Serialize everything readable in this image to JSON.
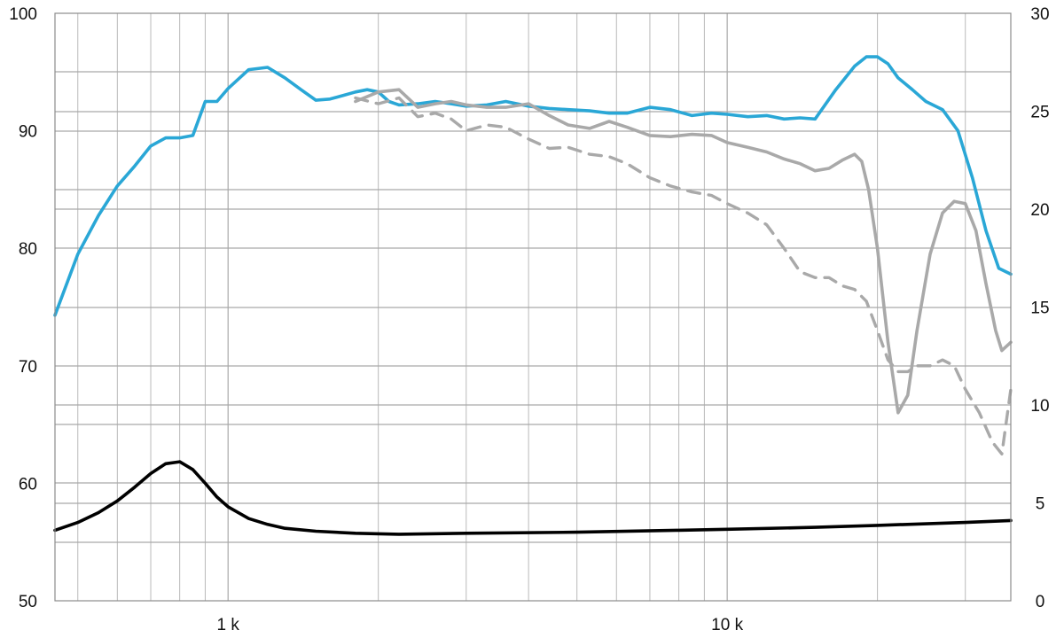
{
  "chart_data": {
    "type": "line",
    "title": "",
    "xlabel": "",
    "ylabel": "",
    "y2label": "",
    "x_scale": "log",
    "xlim": [
      450,
      37000
    ],
    "ylim": [
      50,
      100
    ],
    "y2lim": [
      0,
      30
    ],
    "grid": true,
    "legend": "none",
    "x_tick_labels": [
      {
        "value": 1000,
        "label": "1 k"
      },
      {
        "value": 10000,
        "label": "10 k"
      }
    ],
    "y_ticks": [
      50,
      60,
      70,
      80,
      90,
      100
    ],
    "y_tick_labels": [
      "50",
      "60",
      "70",
      "80",
      "90",
      "100"
    ],
    "y2_ticks": [
      0,
      5,
      10,
      15,
      20,
      25,
      30
    ],
    "y2_tick_labels": [
      "0",
      "5",
      "10",
      "15",
      "20",
      "25",
      "30"
    ],
    "series": [
      {
        "axis": "left",
        "color": "#2aa7d6",
        "style": "solid",
        "x": [
          450,
          500,
          550,
          600,
          650,
          700,
          750,
          800,
          850,
          900,
          950,
          1000,
          1100,
          1200,
          1300,
          1400,
          1500,
          1600,
          1700,
          1800,
          1900,
          2000,
          2100,
          2200,
          2400,
          2600,
          2800,
          3000,
          3300,
          3600,
          4000,
          4400,
          4800,
          5300,
          5800,
          6300,
          7000,
          7700,
          8500,
          9300,
          10000,
          11000,
          12000,
          13000,
          14000,
          15000,
          16500,
          18000,
          19000,
          20000,
          21000,
          22000,
          23500,
          25000,
          27000,
          29000,
          31000,
          33000,
          35000,
          37000
        ],
        "values": [
          74.3,
          79.5,
          82.8,
          85.3,
          87.0,
          88.7,
          89.4,
          89.4,
          89.6,
          92.5,
          92.5,
          93.6,
          95.2,
          95.4,
          94.5,
          93.5,
          92.6,
          92.7,
          93.0,
          93.3,
          93.5,
          93.3,
          92.5,
          92.2,
          92.3,
          92.5,
          92.3,
          92.1,
          92.2,
          92.5,
          92.1,
          91.9,
          91.8,
          91.7,
          91.5,
          91.5,
          92.0,
          91.8,
          91.3,
          91.5,
          91.4,
          91.2,
          91.3,
          91.0,
          91.1,
          91.0,
          93.5,
          95.5,
          96.3,
          96.3,
          95.7,
          94.5,
          93.5,
          92.5,
          91.8,
          90.0,
          86.0,
          81.5,
          78.3,
          77.8
        ]
      },
      {
        "axis": "left",
        "color": "#a9a9a9",
        "style": "solid",
        "x": [
          1800,
          2000,
          2200,
          2400,
          2600,
          2800,
          3000,
          3300,
          3600,
          4000,
          4400,
          4800,
          5300,
          5800,
          6300,
          7000,
          7700,
          8500,
          9300,
          10000,
          11000,
          12000,
          13000,
          14000,
          15000,
          16000,
          17000,
          18000,
          18600,
          19200,
          20000,
          21000,
          22000,
          23000,
          24000,
          25500,
          27000,
          28500,
          30000,
          31500,
          33000,
          34500,
          35500,
          37000
        ],
        "values": [
          92.5,
          93.3,
          93.5,
          92.0,
          92.3,
          92.5,
          92.2,
          92.0,
          92.0,
          92.3,
          91.3,
          90.5,
          90.2,
          90.8,
          90.3,
          89.6,
          89.5,
          89.7,
          89.6,
          89.0,
          88.6,
          88.2,
          87.6,
          87.2,
          86.6,
          86.8,
          87.5,
          88.0,
          87.4,
          85.0,
          80.0,
          72.0,
          66.0,
          67.5,
          73.0,
          79.5,
          83.0,
          84.0,
          83.8,
          81.5,
          77.0,
          73.0,
          71.3,
          72.0
        ]
      },
      {
        "axis": "left",
        "color": "#a9a9a9",
        "style": "dashed",
        "x": [
          1800,
          2000,
          2200,
          2400,
          2600,
          2800,
          3000,
          3300,
          3600,
          4000,
          4400,
          4800,
          5300,
          5800,
          6300,
          7000,
          7700,
          8500,
          9300,
          10000,
          11000,
          12000,
          13000,
          14000,
          15000,
          16000,
          17000,
          18000,
          19000,
          20000,
          21000,
          22000,
          23000,
          24000,
          25500,
          27000,
          28500,
          30000,
          32000,
          34000,
          35500,
          37000
        ],
        "values": [
          92.8,
          92.3,
          92.8,
          91.2,
          91.5,
          91.0,
          90.0,
          90.5,
          90.3,
          89.3,
          88.5,
          88.6,
          88.0,
          87.8,
          87.2,
          86.0,
          85.3,
          84.8,
          84.5,
          83.8,
          83.0,
          82.0,
          80.0,
          78.0,
          77.5,
          77.5,
          76.8,
          76.5,
          75.5,
          73.0,
          70.5,
          69.5,
          69.5,
          70.0,
          70.0,
          70.5,
          70.0,
          68.0,
          66.0,
          63.5,
          62.5,
          68.0
        ]
      },
      {
        "axis": "right",
        "color": "#000000",
        "style": "solid",
        "x": [
          450,
          500,
          550,
          600,
          650,
          700,
          750,
          800,
          850,
          900,
          950,
          1000,
          1100,
          1200,
          1300,
          1500,
          1800,
          2200,
          3000,
          5000,
          8000,
          10000,
          15000,
          20000,
          30000,
          37000
        ],
        "values": [
          3.6,
          4.0,
          4.5,
          5.1,
          5.8,
          6.5,
          7.0,
          7.1,
          6.7,
          6.0,
          5.3,
          4.8,
          4.2,
          3.9,
          3.7,
          3.55,
          3.45,
          3.4,
          3.45,
          3.5,
          3.6,
          3.65,
          3.75,
          3.85,
          4.0,
          4.1
        ]
      }
    ]
  }
}
